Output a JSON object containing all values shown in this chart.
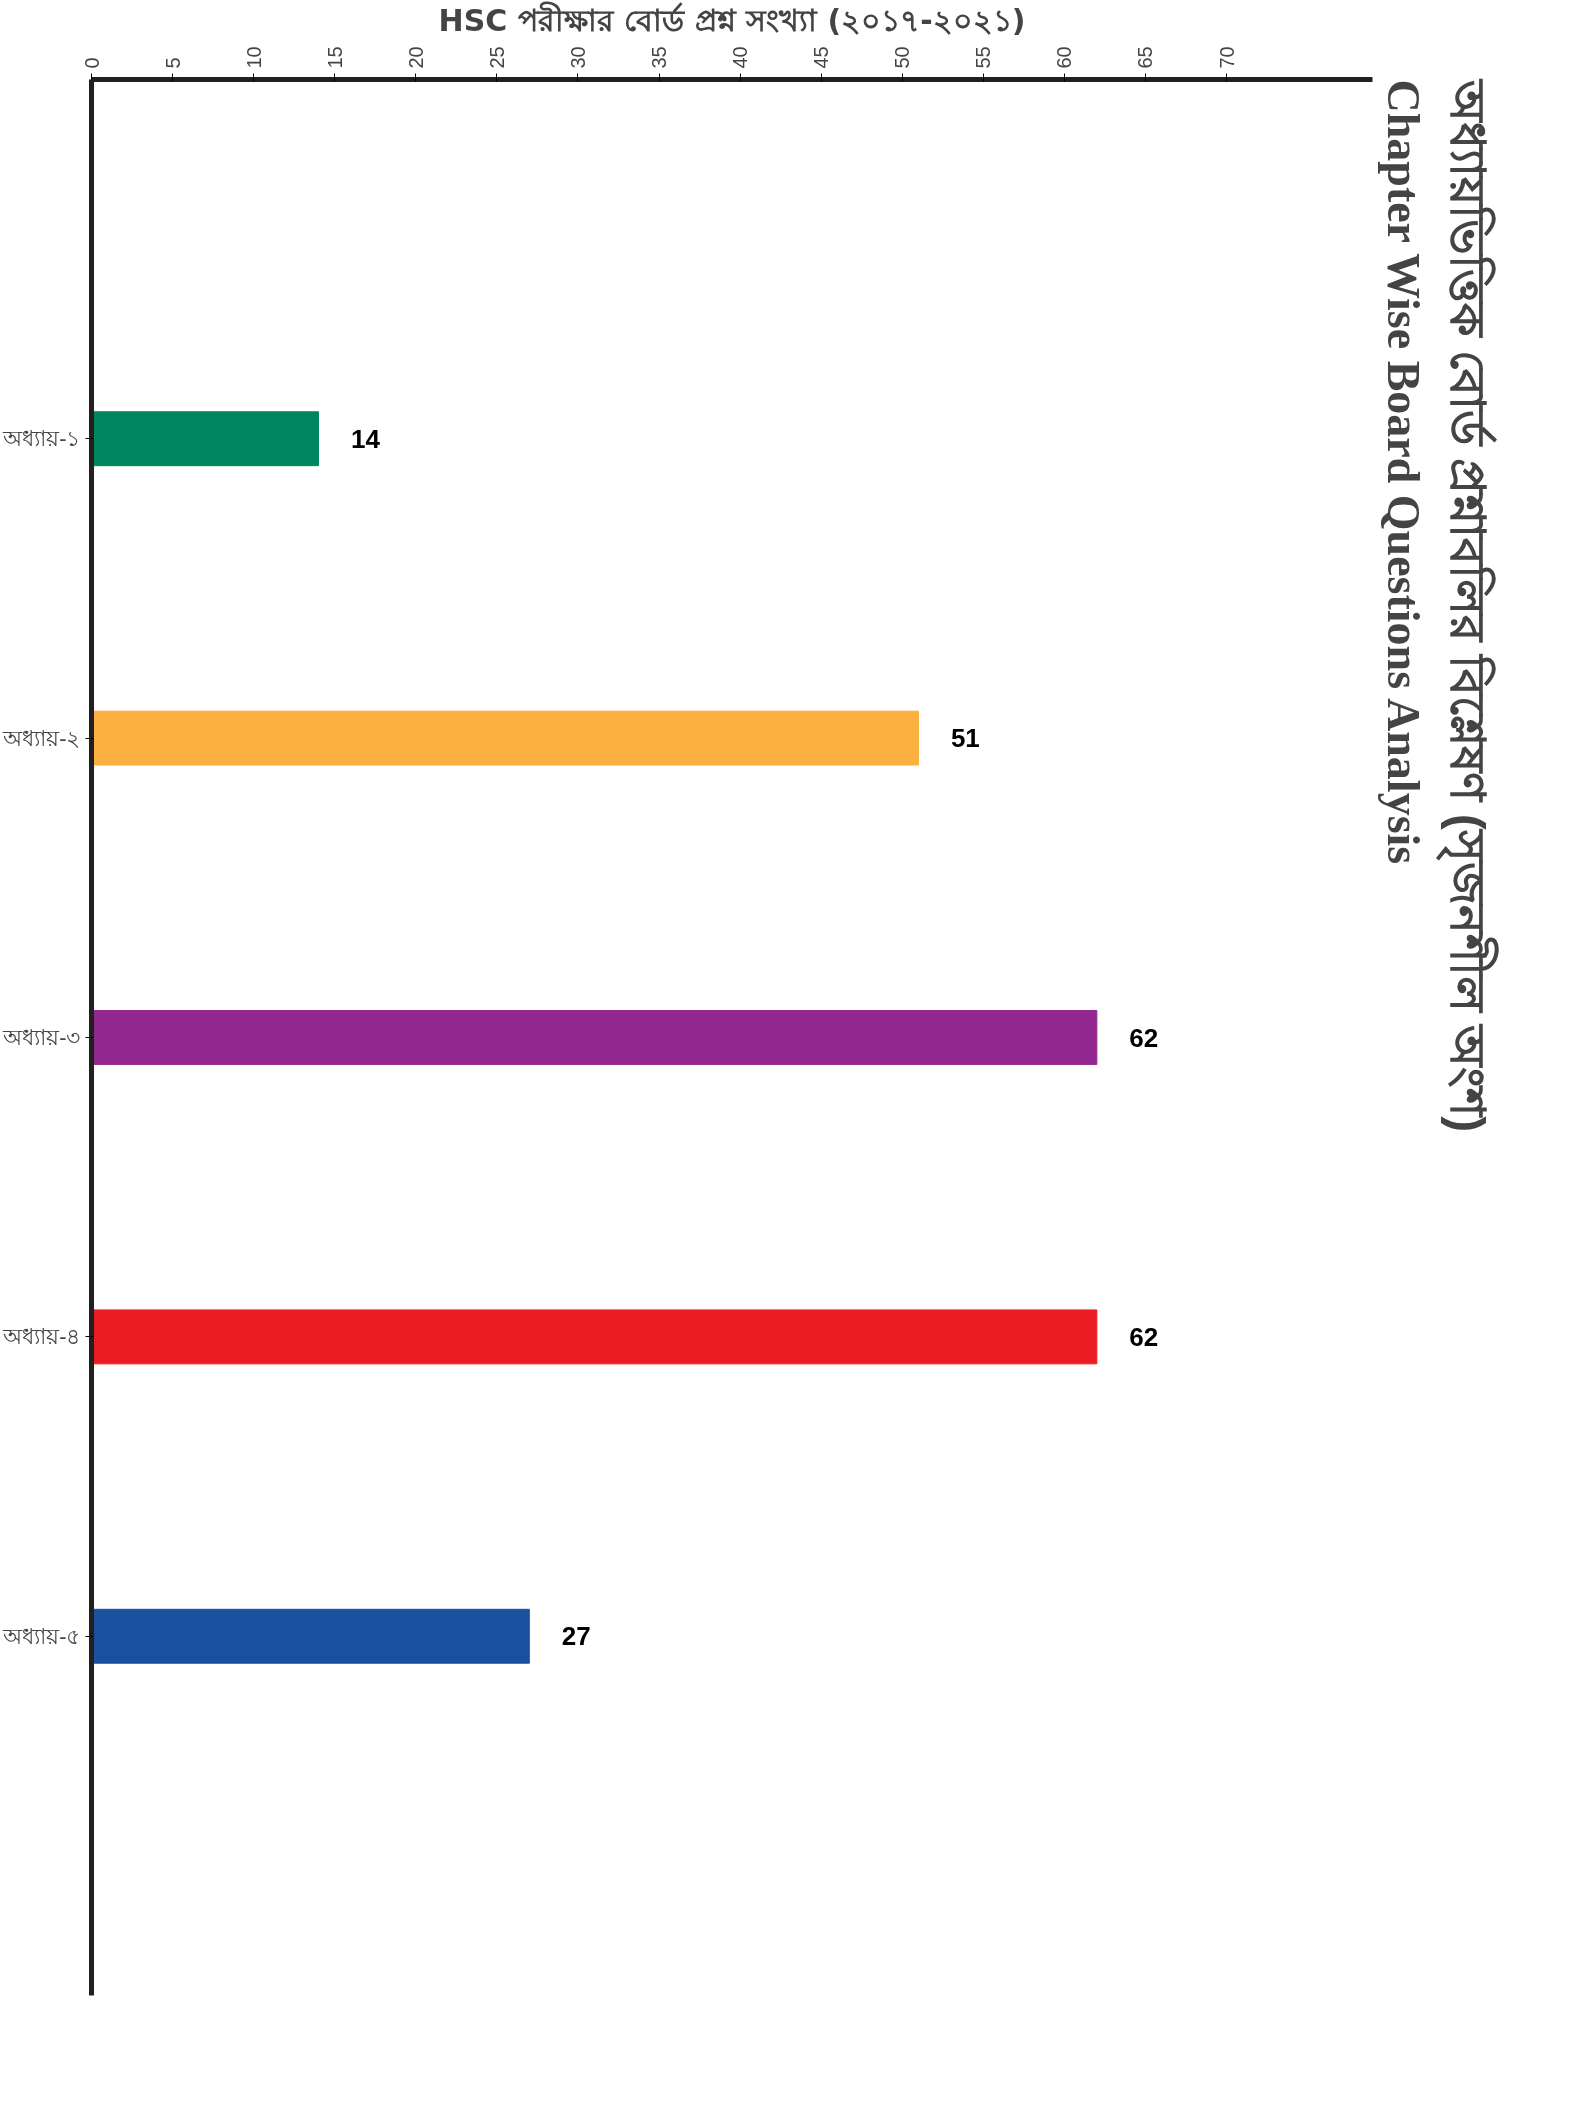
{
  "chart_data": {
    "type": "bar",
    "orientation": "horizontal",
    "title": "অধ্যায়ভিত্তিক বোর্ড প্রশ্নাবলির বিশ্লেষণ (সৃজনশীল অংশ)",
    "subtitle": "Chapter Wise Board Questions Analysis",
    "xlabel": "HSC পরীক্ষার বোর্ড প্রশ্ন সংখ্যা (২০১৭-২০২১)",
    "categories": [
      "অধ্যায়-১",
      "অধ্যায়-২",
      "অধ্যায়-৩",
      "অধ্যায়-৪",
      "অধ্যায়-৫"
    ],
    "values": [
      14,
      51,
      62,
      62,
      27
    ],
    "colors": [
      "#00855f",
      "#fbb040",
      "#92278f",
      "#ed1c24",
      "#1b4fa0"
    ],
    "xlim": [
      0,
      79
    ],
    "xticks": [
      0,
      5,
      10,
      15,
      20,
      25,
      30,
      35,
      40,
      45,
      50,
      55,
      60,
      65,
      70
    ],
    "data_labels": true,
    "grid": false
  }
}
